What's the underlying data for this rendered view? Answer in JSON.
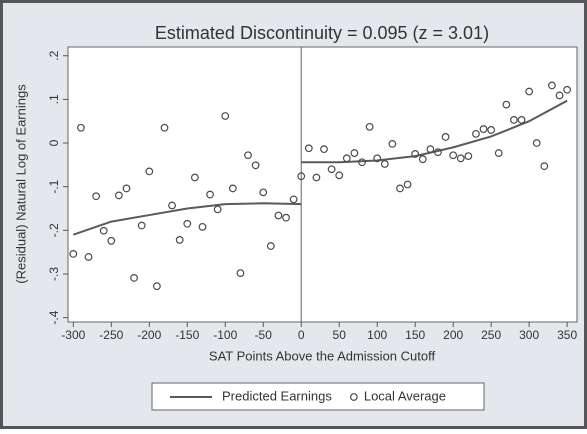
{
  "chart_data": {
    "type": "scatter",
    "title": "Estimated Discontinuity = 0.095 (z = 3.01)",
    "x_label": "SAT Points Above the Admission Cutoff",
    "y_label": "(Residual) Natural Log of Earnings",
    "xlim": [
      -307,
      363
    ],
    "ylim": [
      -0.41,
      0.22
    ],
    "xticks": [
      -300,
      -250,
      -200,
      -150,
      -100,
      -50,
      0,
      50,
      100,
      150,
      200,
      250,
      300,
      350
    ],
    "yticks": [
      {
        "value": 0.2,
        "label": ".2"
      },
      {
        "value": 0.1,
        "label": ".1"
      },
      0,
      {
        "value": -0.1,
        "label": "-.1"
      },
      {
        "value": -0.2,
        "label": "-.2"
      },
      {
        "value": -0.3,
        "label": "-.3"
      },
      {
        "value": -0.4,
        "label": "-.4"
      }
    ],
    "xline": 0,
    "legend": "bottom",
    "series": [
      {
        "name": "Predicted Earnings",
        "type": "line",
        "color": "#5a5a5a",
        "x": [
          -300,
          -250,
          -200,
          -150,
          -100,
          -50,
          0,
          0,
          0,
          50,
          100,
          150,
          200,
          250,
          300,
          350
        ],
        "values": [
          -0.21,
          -0.18,
          -0.165,
          -0.15,
          -0.14,
          -0.138,
          -0.14,
          null,
          -0.044,
          -0.044,
          -0.04,
          -0.03,
          -0.01,
          0.015,
          0.05,
          0.097
        ]
      },
      {
        "name": "Local Average",
        "type": "scatter",
        "color": "#4a4a4a",
        "x": [
          -300,
          -290,
          -280,
          -270,
          -260,
          -250,
          -240,
          -230,
          -220,
          -210,
          -200,
          -190,
          -180,
          -170,
          -160,
          -150,
          -140,
          -130,
          -120,
          -110,
          -100,
          -90,
          -80,
          -70,
          -60,
          -50,
          -40,
          -30,
          -20,
          -10,
          0,
          10,
          20,
          30,
          40,
          50,
          60,
          70,
          80,
          90,
          100,
          110,
          120,
          130,
          140,
          150,
          160,
          170,
          180,
          190,
          200,
          210,
          220,
          230,
          240,
          250,
          260,
          270,
          280,
          290,
          300,
          310,
          320,
          330,
          340,
          350
        ],
        "values": [
          -0.254,
          0.035,
          -0.261,
          -0.122,
          -0.201,
          -0.224,
          -0.12,
          -0.104,
          -0.309,
          -0.189,
          -0.065,
          -0.328,
          0.035,
          -0.143,
          -0.222,
          -0.185,
          -0.079,
          -0.192,
          -0.118,
          -0.152,
          0.062,
          -0.104,
          -0.298,
          -0.028,
          -0.051,
          -0.113,
          -0.236,
          -0.166,
          -0.171,
          -0.129,
          -0.076,
          -0.012,
          -0.079,
          -0.014,
          -0.06,
          -0.074,
          -0.035,
          -0.023,
          -0.044,
          0.037,
          -0.035,
          -0.048,
          -0.002,
          -0.104,
          -0.095,
          -0.025,
          -0.037,
          -0.014,
          -0.021,
          0.014,
          -0.028,
          -0.035,
          -0.03,
          0.021,
          0.032,
          0.03,
          -0.023,
          0.088,
          0.053,
          0.053,
          0.118,
          0,
          -0.053,
          0.132,
          0.109,
          0.122
        ]
      }
    ]
  }
}
